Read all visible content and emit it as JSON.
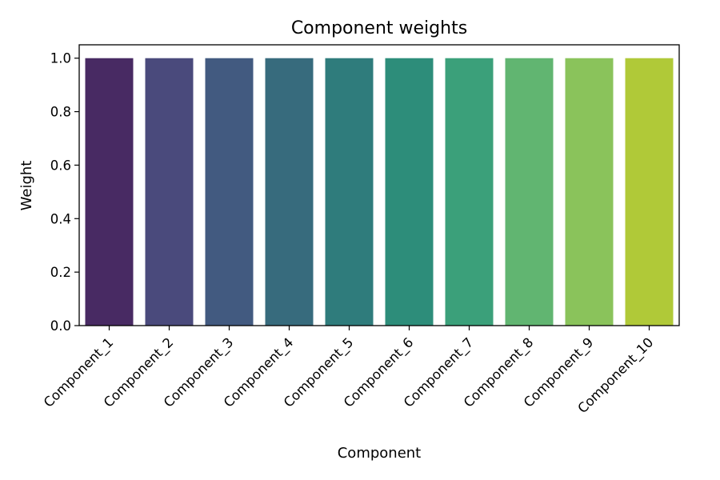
{
  "chart_data": {
    "type": "bar",
    "title": "Component weights",
    "xlabel": "Component",
    "ylabel": "Weight",
    "categories": [
      "Component_1",
      "Component_2",
      "Component_3",
      "Component_4",
      "Component_5",
      "Component_6",
      "Component_7",
      "Component_8",
      "Component_9",
      "Component_10"
    ],
    "values": [
      1.0,
      1.0,
      1.0,
      1.0,
      1.0,
      1.0,
      1.0,
      1.0,
      1.0,
      1.0
    ],
    "colors": [
      "#482a63",
      "#4a4a7c",
      "#425a80",
      "#376b7d",
      "#2f7c7c",
      "#2d8d7a",
      "#3ba07a",
      "#61b571",
      "#8ac35b",
      "#b0c938"
    ],
    "ylim": [
      0,
      1.05
    ],
    "yticks": [
      "0.0",
      "0.2",
      "0.4",
      "0.6",
      "0.8",
      "1.0"
    ],
    "grid": false,
    "legend": "none"
  }
}
